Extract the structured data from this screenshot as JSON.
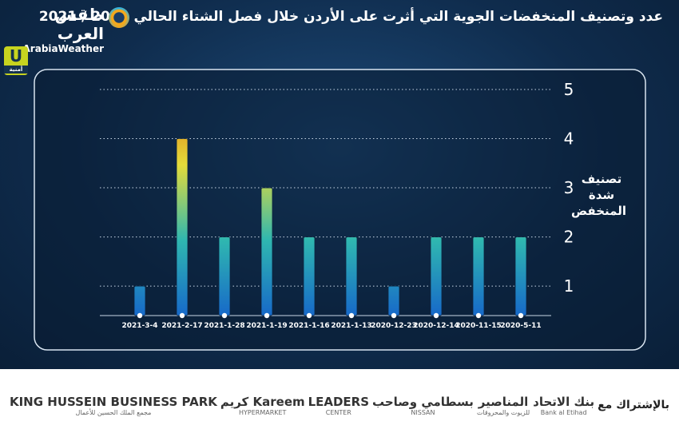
{
  "header": {
    "title": "عدد وتصنيف المنخفضات الجوية التي أثرت على الأردن خلال فصل الشتاء الحالي 2020 / 2021",
    "brand_ar": "طقس العرب",
    "brand_en": "ArabiaWeather",
    "sponsor_logo": "U",
    "sponsor_logo_sub": "أمنية"
  },
  "chart_data": {
    "type": "bar",
    "y_label": "تصنيف شدة المنخفض",
    "categories": [
      "2021-3-4",
      "2021-2-17",
      "2021-1-28",
      "2021-1-19",
      "2021-1-16",
      "2021-1-13",
      "2020-12-23",
      "2020-12-14",
      "2020-11-15",
      "2020-5-11"
    ],
    "values": [
      1,
      4,
      2,
      3,
      2,
      2,
      1,
      2,
      2,
      2
    ],
    "gradient": [
      "#1769c9",
      "#2fb7b0",
      "#e4dc3a",
      "#e0660f"
    ],
    "ylim": [
      0.4,
      5
    ],
    "yticks": [
      1,
      2,
      3,
      4,
      5
    ],
    "grid": true
  },
  "sponsors": {
    "label": "بالإشتراك مع",
    "items": [
      {
        "name": "بنك الاتحاد",
        "sub": "Bank al Etihad"
      },
      {
        "name": "المناصير",
        "sub": "للزيوت والمحروقات"
      },
      {
        "name": "بسطامي وصاحب",
        "sub": "NISSAN"
      },
      {
        "name": "LEADERS",
        "sub": "CENTER"
      },
      {
        "name": "كريم Kareem",
        "sub": "HYPERMARKET"
      },
      {
        "name": "KING HUSSEIN BUSINESS PARK",
        "sub": "مجمع الملك الحسين للأعمال"
      }
    ]
  }
}
